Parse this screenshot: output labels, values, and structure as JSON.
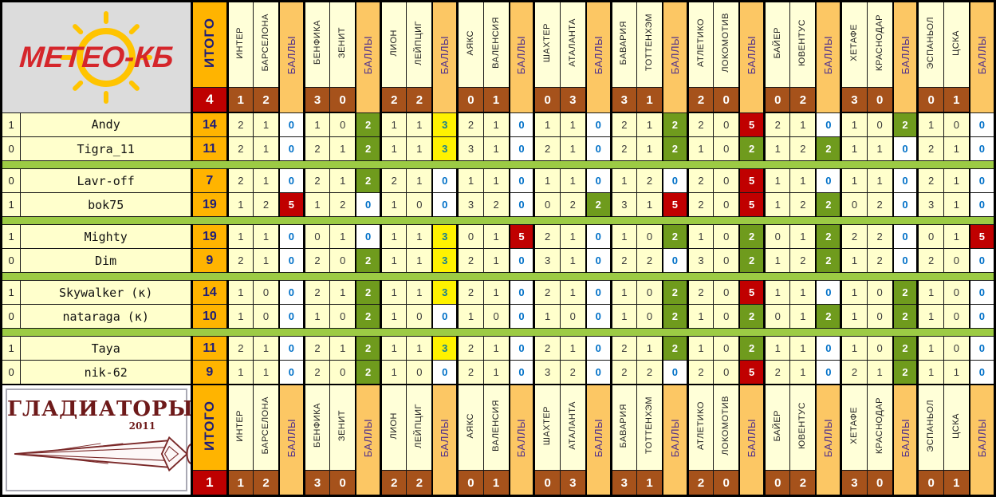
{
  "chart_data": {
    "type": "table",
    "title": "Prediction league matchday table: МЕТЕО-КБ vs ГЛАДИАТОРЫ",
    "total_label": "ИТОГО",
    "points_label": "БАЛЛЫ",
    "team_top": {
      "name": "МЕТЕО-КБ",
      "total": "4"
    },
    "team_bottom": {
      "name": "ГЛАДИАТОРЫ",
      "year": "2011",
      "total": "1"
    },
    "matches": [
      {
        "home": "ИНТЕР",
        "away": "БАРСЕЛОНА",
        "score": [
          1,
          2
        ]
      },
      {
        "home": "БЕНФИКА",
        "away": "ЗЕНИТ",
        "score": [
          3,
          0
        ]
      },
      {
        "home": "ЛИОН",
        "away": "ЛЕЙПЦИГ",
        "score": [
          2,
          2
        ]
      },
      {
        "home": "АЯКС",
        "away": "ВАЛЕНСИЯ",
        "score": [
          0,
          1
        ]
      },
      {
        "home": "ШАХТЕР",
        "away": "АТАЛАНТА",
        "score": [
          0,
          3
        ]
      },
      {
        "home": "БАВАРИЯ",
        "away": "ТОТТЕНХЭМ",
        "score": [
          3,
          1
        ]
      },
      {
        "home": "АТЛЕТИКО",
        "away": "ЛОКОМОТИВ",
        "score": [
          2,
          0
        ]
      },
      {
        "home": "БАЙЕР",
        "away": "ЮВЕНТУС",
        "score": [
          0,
          2
        ]
      },
      {
        "home": "ХЕТАФЕ",
        "away": "КРАСНОДАР",
        "score": [
          3,
          0
        ]
      },
      {
        "home": "ЭСПАНЬОЛ",
        "away": "ЦСКА",
        "score": [
          0,
          1
        ]
      }
    ],
    "pairs": [
      {
        "rows": [
          {
            "duel": "1",
            "name": "Andy",
            "total": "14",
            "predictions": [
              [
                2,
                1
              ],
              [
                1,
                0
              ],
              [
                1,
                1
              ],
              [
                2,
                1
              ],
              [
                1,
                1
              ],
              [
                2,
                1
              ],
              [
                2,
                0
              ],
              [
                2,
                1
              ],
              [
                1,
                0
              ],
              [
                1,
                0
              ]
            ],
            "points": [
              0,
              2,
              3,
              0,
              0,
              2,
              5,
              0,
              2,
              0
            ]
          },
          {
            "duel": "0",
            "name": "Tigra_11",
            "total": "11",
            "predictions": [
              [
                2,
                1
              ],
              [
                2,
                1
              ],
              [
                1,
                1
              ],
              [
                3,
                1
              ],
              [
                2,
                1
              ],
              [
                2,
                1
              ],
              [
                1,
                0
              ],
              [
                1,
                2
              ],
              [
                1,
                1
              ],
              [
                2,
                1
              ]
            ],
            "points": [
              0,
              2,
              3,
              0,
              0,
              2,
              2,
              2,
              0,
              0
            ]
          }
        ]
      },
      {
        "rows": [
          {
            "duel": "0",
            "name": "Lavr-off",
            "total": "7",
            "predictions": [
              [
                2,
                1
              ],
              [
                2,
                1
              ],
              [
                2,
                1
              ],
              [
                1,
                1
              ],
              [
                1,
                1
              ],
              [
                1,
                2
              ],
              [
                2,
                0
              ],
              [
                1,
                1
              ],
              [
                1,
                1
              ],
              [
                2,
                1
              ]
            ],
            "points": [
              0,
              2,
              0,
              0,
              0,
              0,
              5,
              0,
              0,
              0
            ]
          },
          {
            "duel": "1",
            "name": "bok75",
            "total": "19",
            "predictions": [
              [
                1,
                2
              ],
              [
                1,
                2
              ],
              [
                1,
                0
              ],
              [
                3,
                2
              ],
              [
                0,
                2
              ],
              [
                3,
                1
              ],
              [
                2,
                0
              ],
              [
                1,
                2
              ],
              [
                0,
                2
              ],
              [
                3,
                1
              ]
            ],
            "points": [
              5,
              0,
              0,
              0,
              2,
              5,
              5,
              2,
              0,
              0
            ]
          }
        ]
      },
      {
        "rows": [
          {
            "duel": "1",
            "name": "Mighty",
            "total": "19",
            "predictions": [
              [
                1,
                1
              ],
              [
                0,
                1
              ],
              [
                1,
                1
              ],
              [
                0,
                1
              ],
              [
                2,
                1
              ],
              [
                1,
                0
              ],
              [
                1,
                0
              ],
              [
                0,
                1
              ],
              [
                2,
                2
              ],
              [
                0,
                1
              ]
            ],
            "points": [
              0,
              0,
              3,
              5,
              0,
              2,
              2,
              2,
              0,
              5
            ]
          },
          {
            "duel": "0",
            "name": "Dim",
            "total": "9",
            "predictions": [
              [
                2,
                1
              ],
              [
                2,
                0
              ],
              [
                1,
                1
              ],
              [
                2,
                1
              ],
              [
                3,
                1
              ],
              [
                2,
                2
              ],
              [
                3,
                0
              ],
              [
                1,
                2
              ],
              [
                1,
                2
              ],
              [
                2,
                0
              ]
            ],
            "points": [
              0,
              2,
              3,
              0,
              0,
              0,
              2,
              2,
              0,
              0
            ]
          }
        ]
      },
      {
        "rows": [
          {
            "duel": "1",
            "name": "Skywalker (к)",
            "total": "14",
            "predictions": [
              [
                1,
                0
              ],
              [
                2,
                1
              ],
              [
                1,
                1
              ],
              [
                2,
                1
              ],
              [
                2,
                1
              ],
              [
                1,
                0
              ],
              [
                2,
                0
              ],
              [
                1,
                1
              ],
              [
                1,
                0
              ],
              [
                1,
                0
              ]
            ],
            "points": [
              0,
              2,
              3,
              0,
              0,
              2,
              5,
              0,
              2,
              0
            ]
          },
          {
            "duel": "0",
            "name": "nataraga (к)",
            "total": "10",
            "predictions": [
              [
                1,
                0
              ],
              [
                1,
                0
              ],
              [
                1,
                0
              ],
              [
                1,
                0
              ],
              [
                1,
                0
              ],
              [
                1,
                0
              ],
              [
                1,
                0
              ],
              [
                0,
                1
              ],
              [
                1,
                0
              ],
              [
                1,
                0
              ]
            ],
            "points": [
              0,
              2,
              0,
              0,
              0,
              2,
              2,
              2,
              2,
              0
            ]
          }
        ]
      },
      {
        "rows": [
          {
            "duel": "1",
            "name": "Taya",
            "total": "11",
            "predictions": [
              [
                2,
                1
              ],
              [
                2,
                1
              ],
              [
                1,
                1
              ],
              [
                2,
                1
              ],
              [
                2,
                1
              ],
              [
                2,
                1
              ],
              [
                1,
                0
              ],
              [
                1,
                1
              ],
              [
                1,
                0
              ],
              [
                1,
                0
              ]
            ],
            "points": [
              0,
              2,
              3,
              0,
              0,
              2,
              2,
              0,
              2,
              0
            ]
          },
          {
            "duel": "0",
            "name": "nik-62",
            "total": "9",
            "predictions": [
              [
                1,
                1
              ],
              [
                2,
                0
              ],
              [
                1,
                0
              ],
              [
                2,
                1
              ],
              [
                3,
                2
              ],
              [
                2,
                2
              ],
              [
                2,
                0
              ],
              [
                2,
                1
              ],
              [
                2,
                1
              ],
              [
                1,
                1
              ]
            ],
            "points": [
              0,
              2,
              0,
              0,
              0,
              0,
              5,
              0,
              2,
              0
            ]
          }
        ]
      }
    ],
    "colors": {
      "header_cream": "#FFFFD8",
      "points_column_tan": "#FCC764",
      "total_orange": "#FFB400",
      "score_brown": "#A6521B",
      "total_dark_red": "#BE0000",
      "row_yellow": "#FFFFCC",
      "points_zero_blue": "#0070C8",
      "points_two_green": "#6F9B1D",
      "points_three_yellow": "#FFF200",
      "points_three_text_teal": "#177F8F",
      "points_five_red": "#C00000",
      "separator_green": "#9CCB44",
      "meteo_logo_red": "#D5262B",
      "sun_yellow": "#FFC400",
      "gladiators_dark_red": "#6E1A1A",
      "navy_text": "#1E1E78",
      "points_label_purple": "#50308C"
    }
  }
}
